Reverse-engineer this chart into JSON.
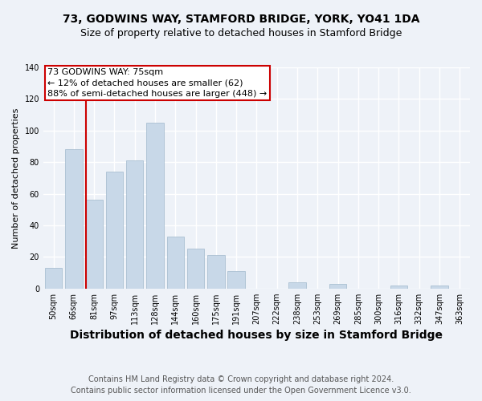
{
  "title1": "73, GODWINS WAY, STAMFORD BRIDGE, YORK, YO41 1DA",
  "title2": "Size of property relative to detached houses in Stamford Bridge",
  "xlabel": "Distribution of detached houses by size in Stamford Bridge",
  "ylabel": "Number of detached properties",
  "footer_line1": "Contains HM Land Registry data © Crown copyright and database right 2024.",
  "footer_line2": "Contains public sector information licensed under the Open Government Licence v3.0.",
  "categories": [
    "50sqm",
    "66sqm",
    "81sqm",
    "97sqm",
    "113sqm",
    "128sqm",
    "144sqm",
    "160sqm",
    "175sqm",
    "191sqm",
    "207sqm",
    "222sqm",
    "238sqm",
    "253sqm",
    "269sqm",
    "285sqm",
    "300sqm",
    "316sqm",
    "332sqm",
    "347sqm",
    "363sqm"
  ],
  "values": [
    13,
    88,
    56,
    74,
    81,
    105,
    33,
    25,
    21,
    11,
    0,
    0,
    4,
    0,
    3,
    0,
    0,
    2,
    0,
    2,
    0
  ],
  "bar_color": "#c8d8e8",
  "bar_edge_color": "#a0b8cc",
  "annotation_text_line1": "73 GODWINS WAY: 75sqm",
  "annotation_text_line2": "← 12% of detached houses are smaller (62)",
  "annotation_text_line3": "88% of semi-detached houses are larger (448) →",
  "ylim": [
    0,
    140
  ],
  "yticks": [
    0,
    20,
    40,
    60,
    80,
    100,
    120,
    140
  ],
  "background_color": "#eef2f8",
  "plot_background": "#eef2f8",
  "grid_color": "#ffffff",
  "annotation_box_edge": "#cc0000",
  "red_line_color": "#cc0000",
  "title1_fontsize": 10,
  "title2_fontsize": 9,
  "xlabel_fontsize": 10,
  "ylabel_fontsize": 8,
  "tick_fontsize": 7,
  "footer_fontsize": 7,
  "annotation_fontsize": 8
}
